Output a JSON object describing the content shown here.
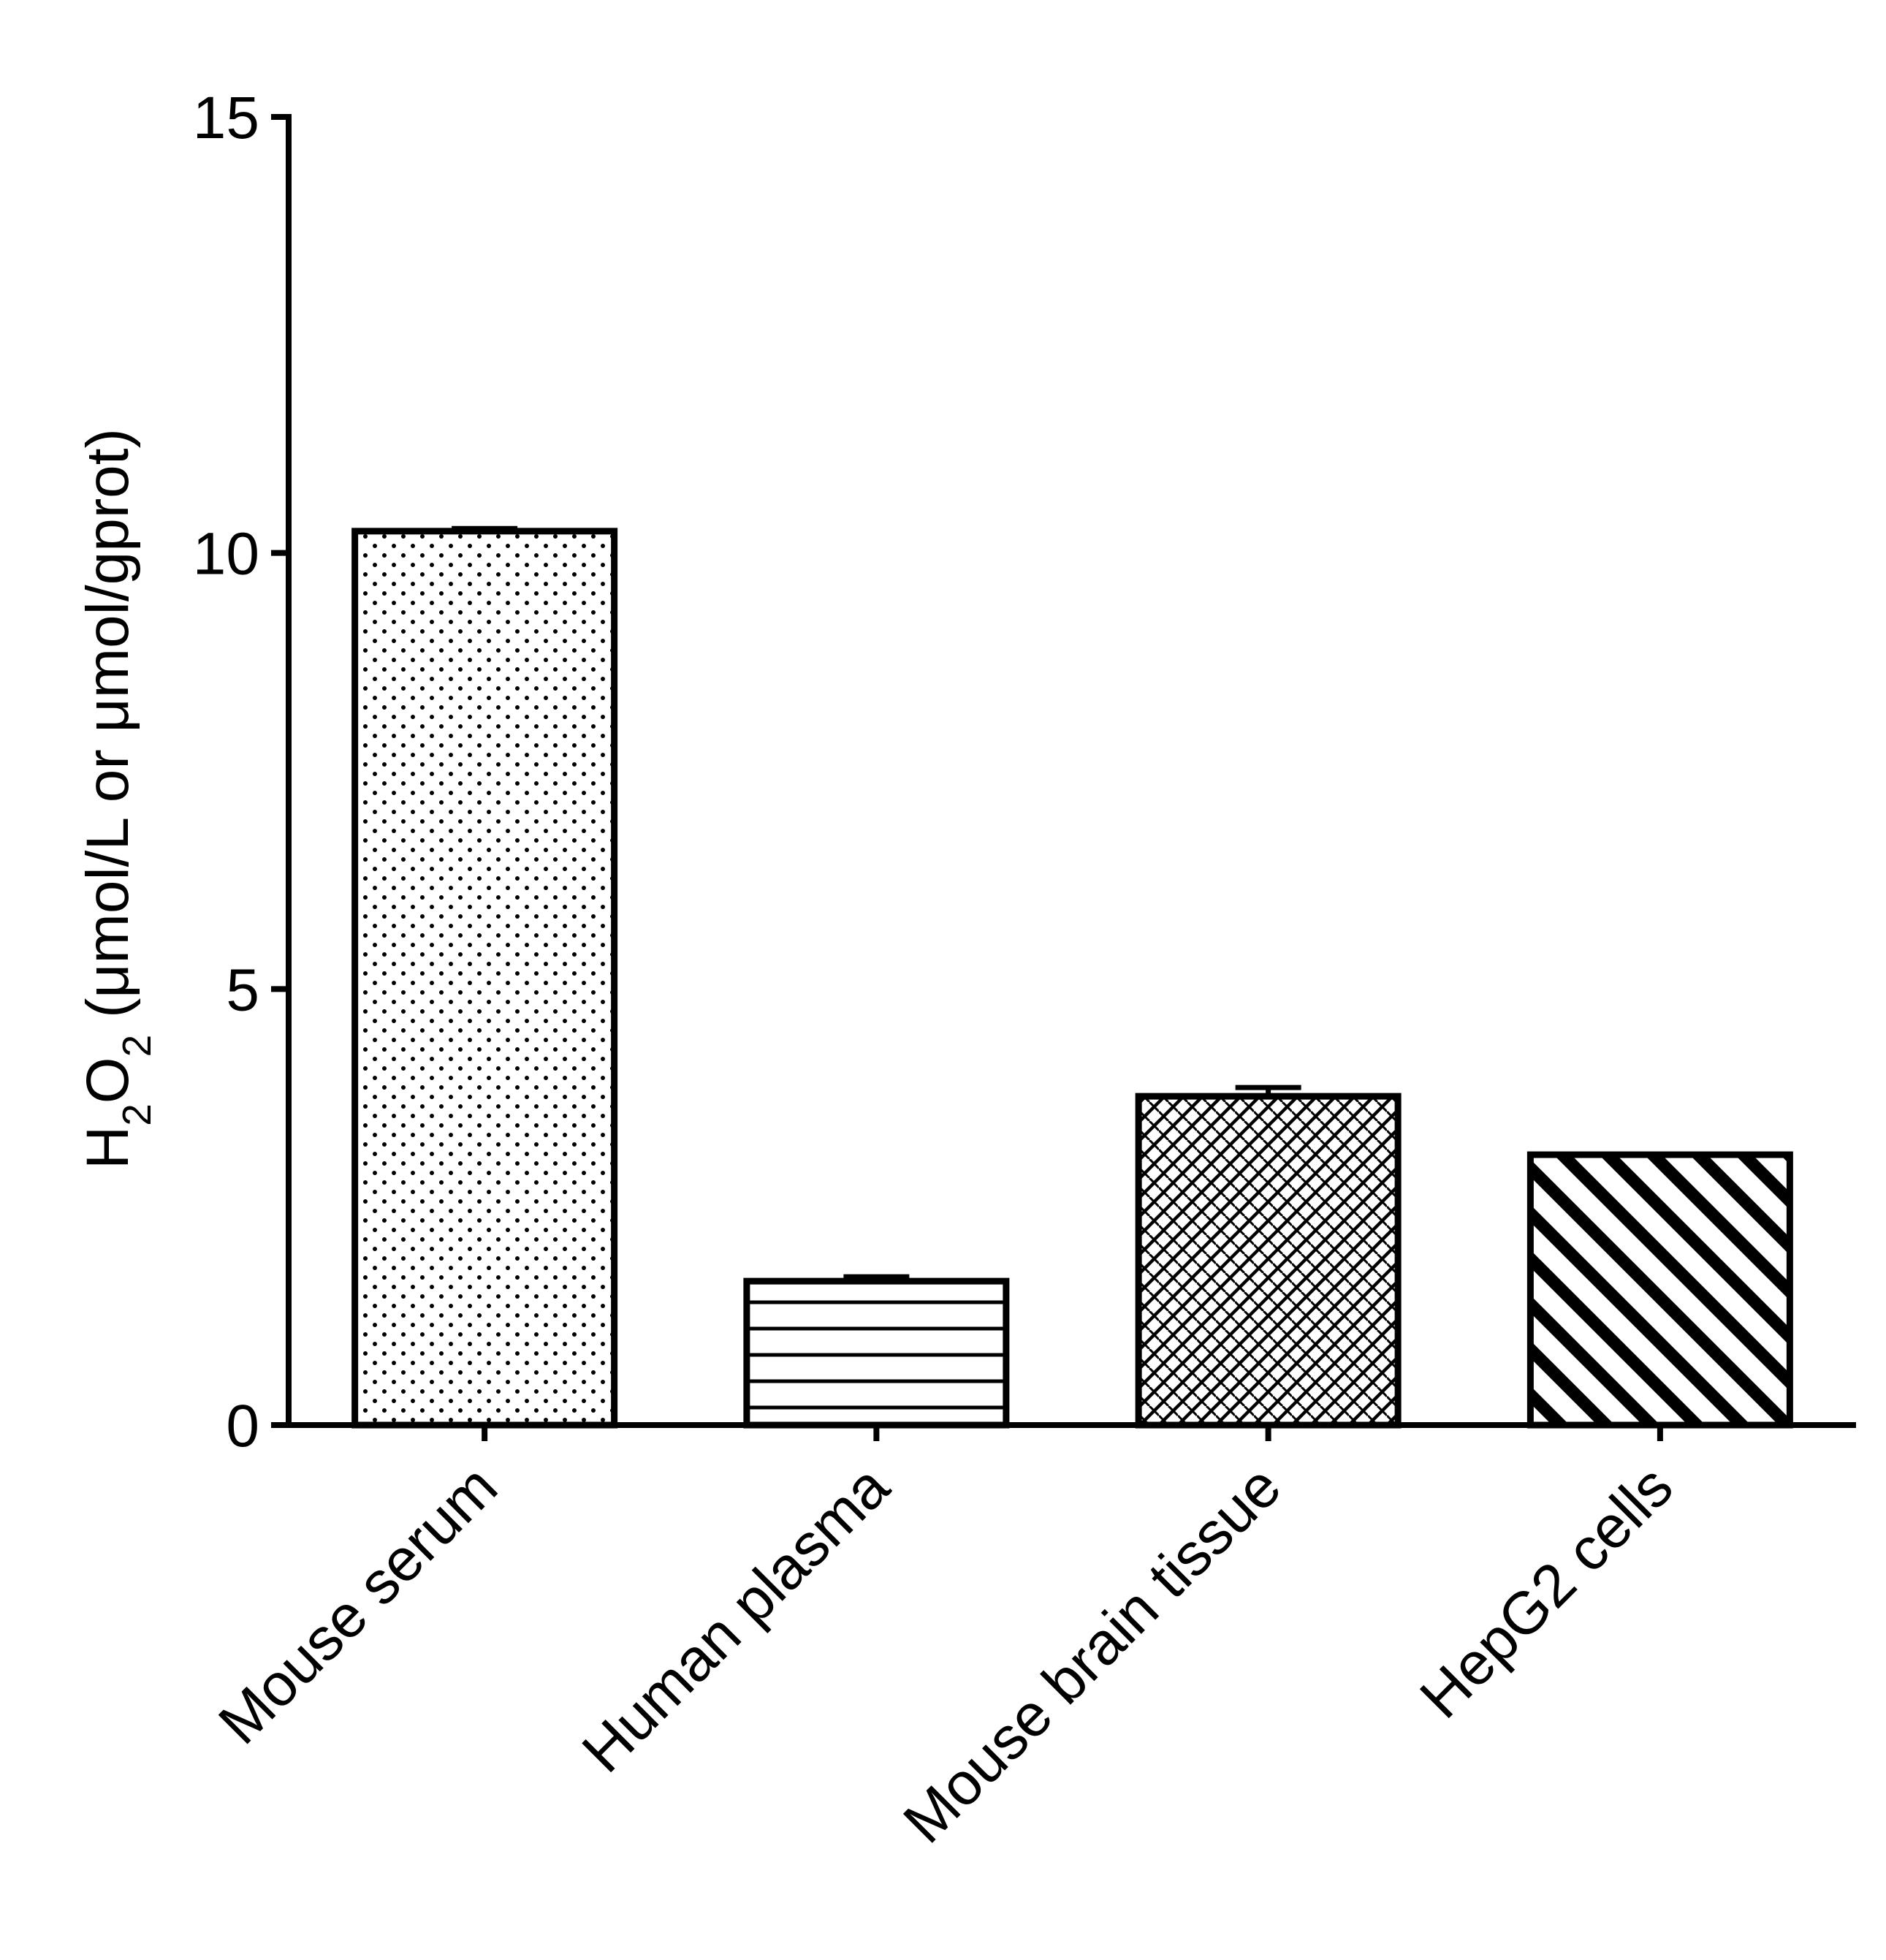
{
  "chart_data": {
    "type": "bar",
    "categories": [
      "Mouse serum",
      "Human plasma",
      "Mouse brain tissue",
      "HepG2 cells"
    ],
    "values": [
      10.25,
      1.65,
      3.77,
      3.1
    ],
    "errors": [
      0.03,
      0.05,
      0.1,
      0.0
    ],
    "patterns": [
      "dots",
      "horizontal-lines",
      "crosshatch",
      "diagonal-stripes"
    ],
    "ylabel_main": "H",
    "ylabel_sub1": "2",
    "ylabel_mid": "O",
    "ylabel_sub2": "2",
    "ylabel_rest": " (μmol/L or μmol/gprot)",
    "ylim": [
      0,
      15
    ],
    "yticks": [
      0,
      5,
      10,
      15
    ],
    "ytick_labels": [
      "0",
      "5",
      "10",
      "15"
    ],
    "grid": false,
    "colors": {
      "stroke": "#000000",
      "fill": "#ffffff"
    }
  }
}
